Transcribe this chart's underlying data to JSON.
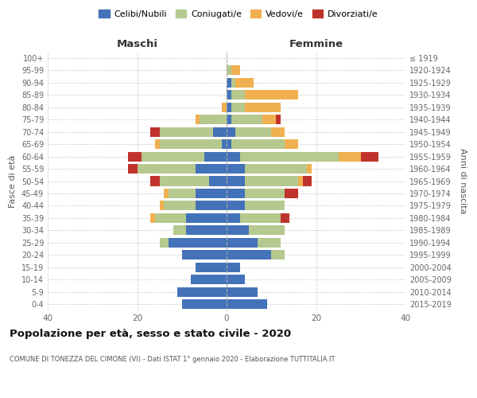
{
  "age_groups": [
    "0-4",
    "5-9",
    "10-14",
    "15-19",
    "20-24",
    "25-29",
    "30-34",
    "35-39",
    "40-44",
    "45-49",
    "50-54",
    "55-59",
    "60-64",
    "65-69",
    "70-74",
    "75-79",
    "80-84",
    "85-89",
    "90-94",
    "95-99",
    "100+"
  ],
  "birth_years": [
    "2015-2019",
    "2010-2014",
    "2005-2009",
    "2000-2004",
    "1995-1999",
    "1990-1994",
    "1985-1989",
    "1980-1984",
    "1975-1979",
    "1970-1974",
    "1965-1969",
    "1960-1964",
    "1955-1959",
    "1950-1954",
    "1945-1949",
    "1940-1944",
    "1935-1939",
    "1930-1934",
    "1925-1929",
    "1920-1924",
    "≤ 1919"
  ],
  "males": {
    "celibi": [
      10,
      11,
      8,
      7,
      10,
      13,
      9,
      9,
      7,
      7,
      4,
      7,
      5,
      1,
      3,
      0,
      0,
      0,
      0,
      0,
      0
    ],
    "coniugati": [
      0,
      0,
      0,
      0,
      0,
      2,
      3,
      7,
      7,
      6,
      11,
      13,
      14,
      14,
      12,
      6,
      0,
      0,
      0,
      0,
      0
    ],
    "vedovi": [
      0,
      0,
      0,
      0,
      0,
      0,
      0,
      1,
      1,
      1,
      0,
      0,
      0,
      1,
      0,
      1,
      1,
      0,
      0,
      0,
      0
    ],
    "divorziati": [
      0,
      0,
      0,
      0,
      0,
      0,
      0,
      0,
      0,
      0,
      2,
      2,
      3,
      0,
      2,
      0,
      0,
      0,
      0,
      0,
      0
    ]
  },
  "females": {
    "nubili": [
      9,
      7,
      4,
      3,
      10,
      7,
      5,
      3,
      4,
      4,
      4,
      4,
      3,
      1,
      2,
      1,
      1,
      1,
      1,
      0,
      0
    ],
    "coniugate": [
      0,
      0,
      0,
      0,
      3,
      5,
      8,
      9,
      9,
      9,
      12,
      14,
      22,
      12,
      8,
      7,
      3,
      3,
      1,
      1,
      0
    ],
    "vedove": [
      0,
      0,
      0,
      0,
      0,
      0,
      0,
      0,
      0,
      0,
      1,
      1,
      5,
      3,
      3,
      3,
      8,
      12,
      4,
      2,
      0
    ],
    "divorziate": [
      0,
      0,
      0,
      0,
      0,
      0,
      0,
      2,
      0,
      3,
      2,
      0,
      4,
      0,
      0,
      1,
      0,
      0,
      0,
      0,
      0
    ]
  },
  "colors": {
    "celibi": "#4472b8",
    "coniugati": "#b5c98e",
    "vedovi": "#f0b050",
    "divorziati": "#c0332c"
  },
  "xlim": 40,
  "title": "Popolazione per età, sesso e stato civile - 2020",
  "subtitle": "COMUNE DI TONEZZA DEL CIMONE (VI) - Dati ISTAT 1° gennaio 2020 - Elaborazione TUTTITALIA.IT",
  "xlabel_left": "Maschi",
  "xlabel_right": "Femmine",
  "ylabel_left": "Fasce di età",
  "ylabel_right": "Anni di nascita",
  "legend_labels": [
    "Celibi/Nubili",
    "Coniugati/e",
    "Vedovi/e",
    "Divorziati/e"
  ],
  "background_color": "#ffffff",
  "grid_color": "#cccccc"
}
